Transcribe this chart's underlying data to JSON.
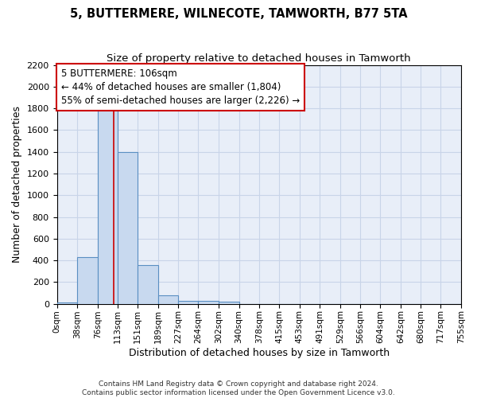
{
  "title": "5, BUTTERMERE, WILNECOTE, TAMWORTH, B77 5TA",
  "subtitle": "Size of property relative to detached houses in Tamworth",
  "xlabel": "Distribution of detached houses by size in Tamworth",
  "ylabel": "Number of detached properties",
  "bin_edges": [
    0,
    38,
    76,
    113,
    151,
    189,
    227,
    264,
    302,
    340,
    378,
    415,
    453,
    491,
    529,
    566,
    604,
    642,
    680,
    717,
    755
  ],
  "bar_heights": [
    15,
    430,
    1800,
    1400,
    355,
    80,
    30,
    25,
    20,
    0,
    0,
    0,
    0,
    0,
    0,
    0,
    0,
    0,
    0,
    0
  ],
  "bar_color": "#c8d9ef",
  "bar_edge_color": "#5a8fc2",
  "property_size": 106,
  "red_line_color": "#cc0000",
  "annotation_line1": "5 BUTTERMERE: 106sqm",
  "annotation_line2": "← 44% of detached houses are smaller (1,804)",
  "annotation_line3": "55% of semi-detached houses are larger (2,226) →",
  "annotation_box_color": "white",
  "annotation_box_edge": "#cc0000",
  "ylim": [
    0,
    2200
  ],
  "yticks": [
    0,
    200,
    400,
    600,
    800,
    1000,
    1200,
    1400,
    1600,
    1800,
    2000,
    2200
  ],
  "grid_color": "#c8d4e8",
  "background_color": "#e8eef8",
  "title_fontsize": 10.5,
  "subtitle_fontsize": 9.5,
  "tick_fontsize": 7.5,
  "ylabel_fontsize": 9,
  "xlabel_fontsize": 9,
  "annotation_fontsize": 8.5,
  "footer_fontsize": 6.5
}
